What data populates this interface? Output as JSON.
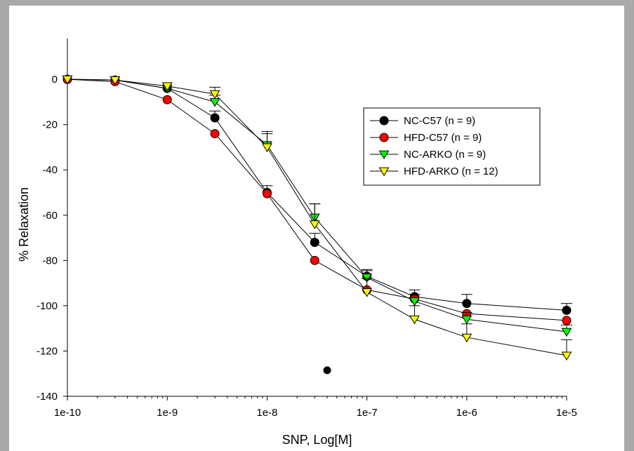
{
  "chart_data": {
    "type": "line",
    "title": "",
    "xlabel": "SNP, Log[M]",
    "ylabel": "% Relaxation",
    "x_scale": "log",
    "xlim": [
      1e-10,
      1e-05
    ],
    "ylim": [
      -140,
      18
    ],
    "x_tick_values": [
      1e-10,
      1e-09,
      1e-08,
      1e-07,
      1e-06,
      1e-05
    ],
    "x_tick_labels": [
      "1e-10",
      "1e-9",
      "1e-8",
      "1e-7",
      "1e-6",
      "1e-5"
    ],
    "y_tick_values": [
      0,
      -20,
      -40,
      -60,
      -80,
      -100,
      -120,
      -140
    ],
    "y_tick_labels": [
      "0",
      "-20",
      "-40",
      "-60",
      "-80",
      "-100",
      "-120",
      "-140"
    ],
    "grid": false,
    "legend_position": "upper-right",
    "x": [
      1e-10,
      3e-10,
      1e-09,
      3e-09,
      1e-08,
      3e-08,
      1e-07,
      3e-07,
      1e-06,
      1e-05
    ],
    "series": [
      {
        "name": "NC-C57 (n = 9)",
        "marker": "circle",
        "color": "#000000",
        "values": [
          0,
          -0.3,
          -4,
          -17,
          -50,
          -72,
          -87,
          -96,
          -99,
          -102
        ],
        "error": [
          0,
          0,
          0,
          3,
          3,
          4,
          3,
          3,
          4,
          3
        ]
      },
      {
        "name": "HFD-C57 (n = 9)",
        "marker": "circle",
        "color": "#ff0000",
        "values": [
          0,
          -1,
          -9,
          -24,
          -50.5,
          -80,
          -93,
          -97,
          -103.5,
          -106.5
        ],
        "error": [
          0,
          0,
          0,
          0,
          0,
          0,
          0,
          0,
          0,
          0
        ]
      },
      {
        "name": "NC-ARKO (n = 9)",
        "marker": "triangle-down",
        "color": "#00ff00",
        "values": [
          0,
          -0.3,
          -4,
          -10,
          -29,
          -61,
          -87.5,
          -98,
          -106,
          -111.5
        ],
        "error": [
          0,
          0,
          0,
          3,
          6,
          6,
          3,
          3,
          3,
          3
        ]
      },
      {
        "name": "HFD-ARKO (n = 12)",
        "marker": "triangle-down",
        "color": "#ffff00",
        "values": [
          0,
          -0.3,
          -3,
          -6.5,
          -30,
          -64,
          -94,
          -106,
          -114,
          -122
        ],
        "error": [
          0,
          0,
          0,
          3,
          6,
          9,
          6,
          6,
          6,
          7
        ]
      }
    ],
    "outliers": [
      {
        "x": 4e-08,
        "y": -128.5,
        "color": "#000000",
        "marker": "circle"
      }
    ]
  }
}
